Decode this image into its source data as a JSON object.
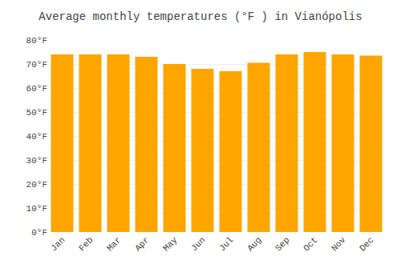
{
  "chart_data": {
    "type": "bar",
    "title": "Average monthly temperatures (°F ) in Vianópolis",
    "categories": [
      "Jan",
      "Feb",
      "Mar",
      "Apr",
      "May",
      "Jun",
      "Jul",
      "Aug",
      "Sep",
      "Oct",
      "Nov",
      "Dec"
    ],
    "values": [
      74,
      74,
      74,
      73,
      70,
      68,
      67,
      70.5,
      74,
      75,
      74,
      73.5
    ],
    "color": "#FFA500",
    "ylim": [
      0,
      80
    ],
    "yticks": [
      {
        "value": 0,
        "label": "0°F"
      },
      {
        "value": 10,
        "label": "10°F"
      },
      {
        "value": 20,
        "label": "20°F"
      },
      {
        "value": 30,
        "label": "30°F"
      },
      {
        "value": 40,
        "label": "40°F"
      },
      {
        "value": 50,
        "label": "50°F"
      },
      {
        "value": 60,
        "label": "60°F"
      },
      {
        "value": 70,
        "label": "70°F"
      },
      {
        "value": 80,
        "label": "80°F"
      }
    ],
    "grid": true
  }
}
